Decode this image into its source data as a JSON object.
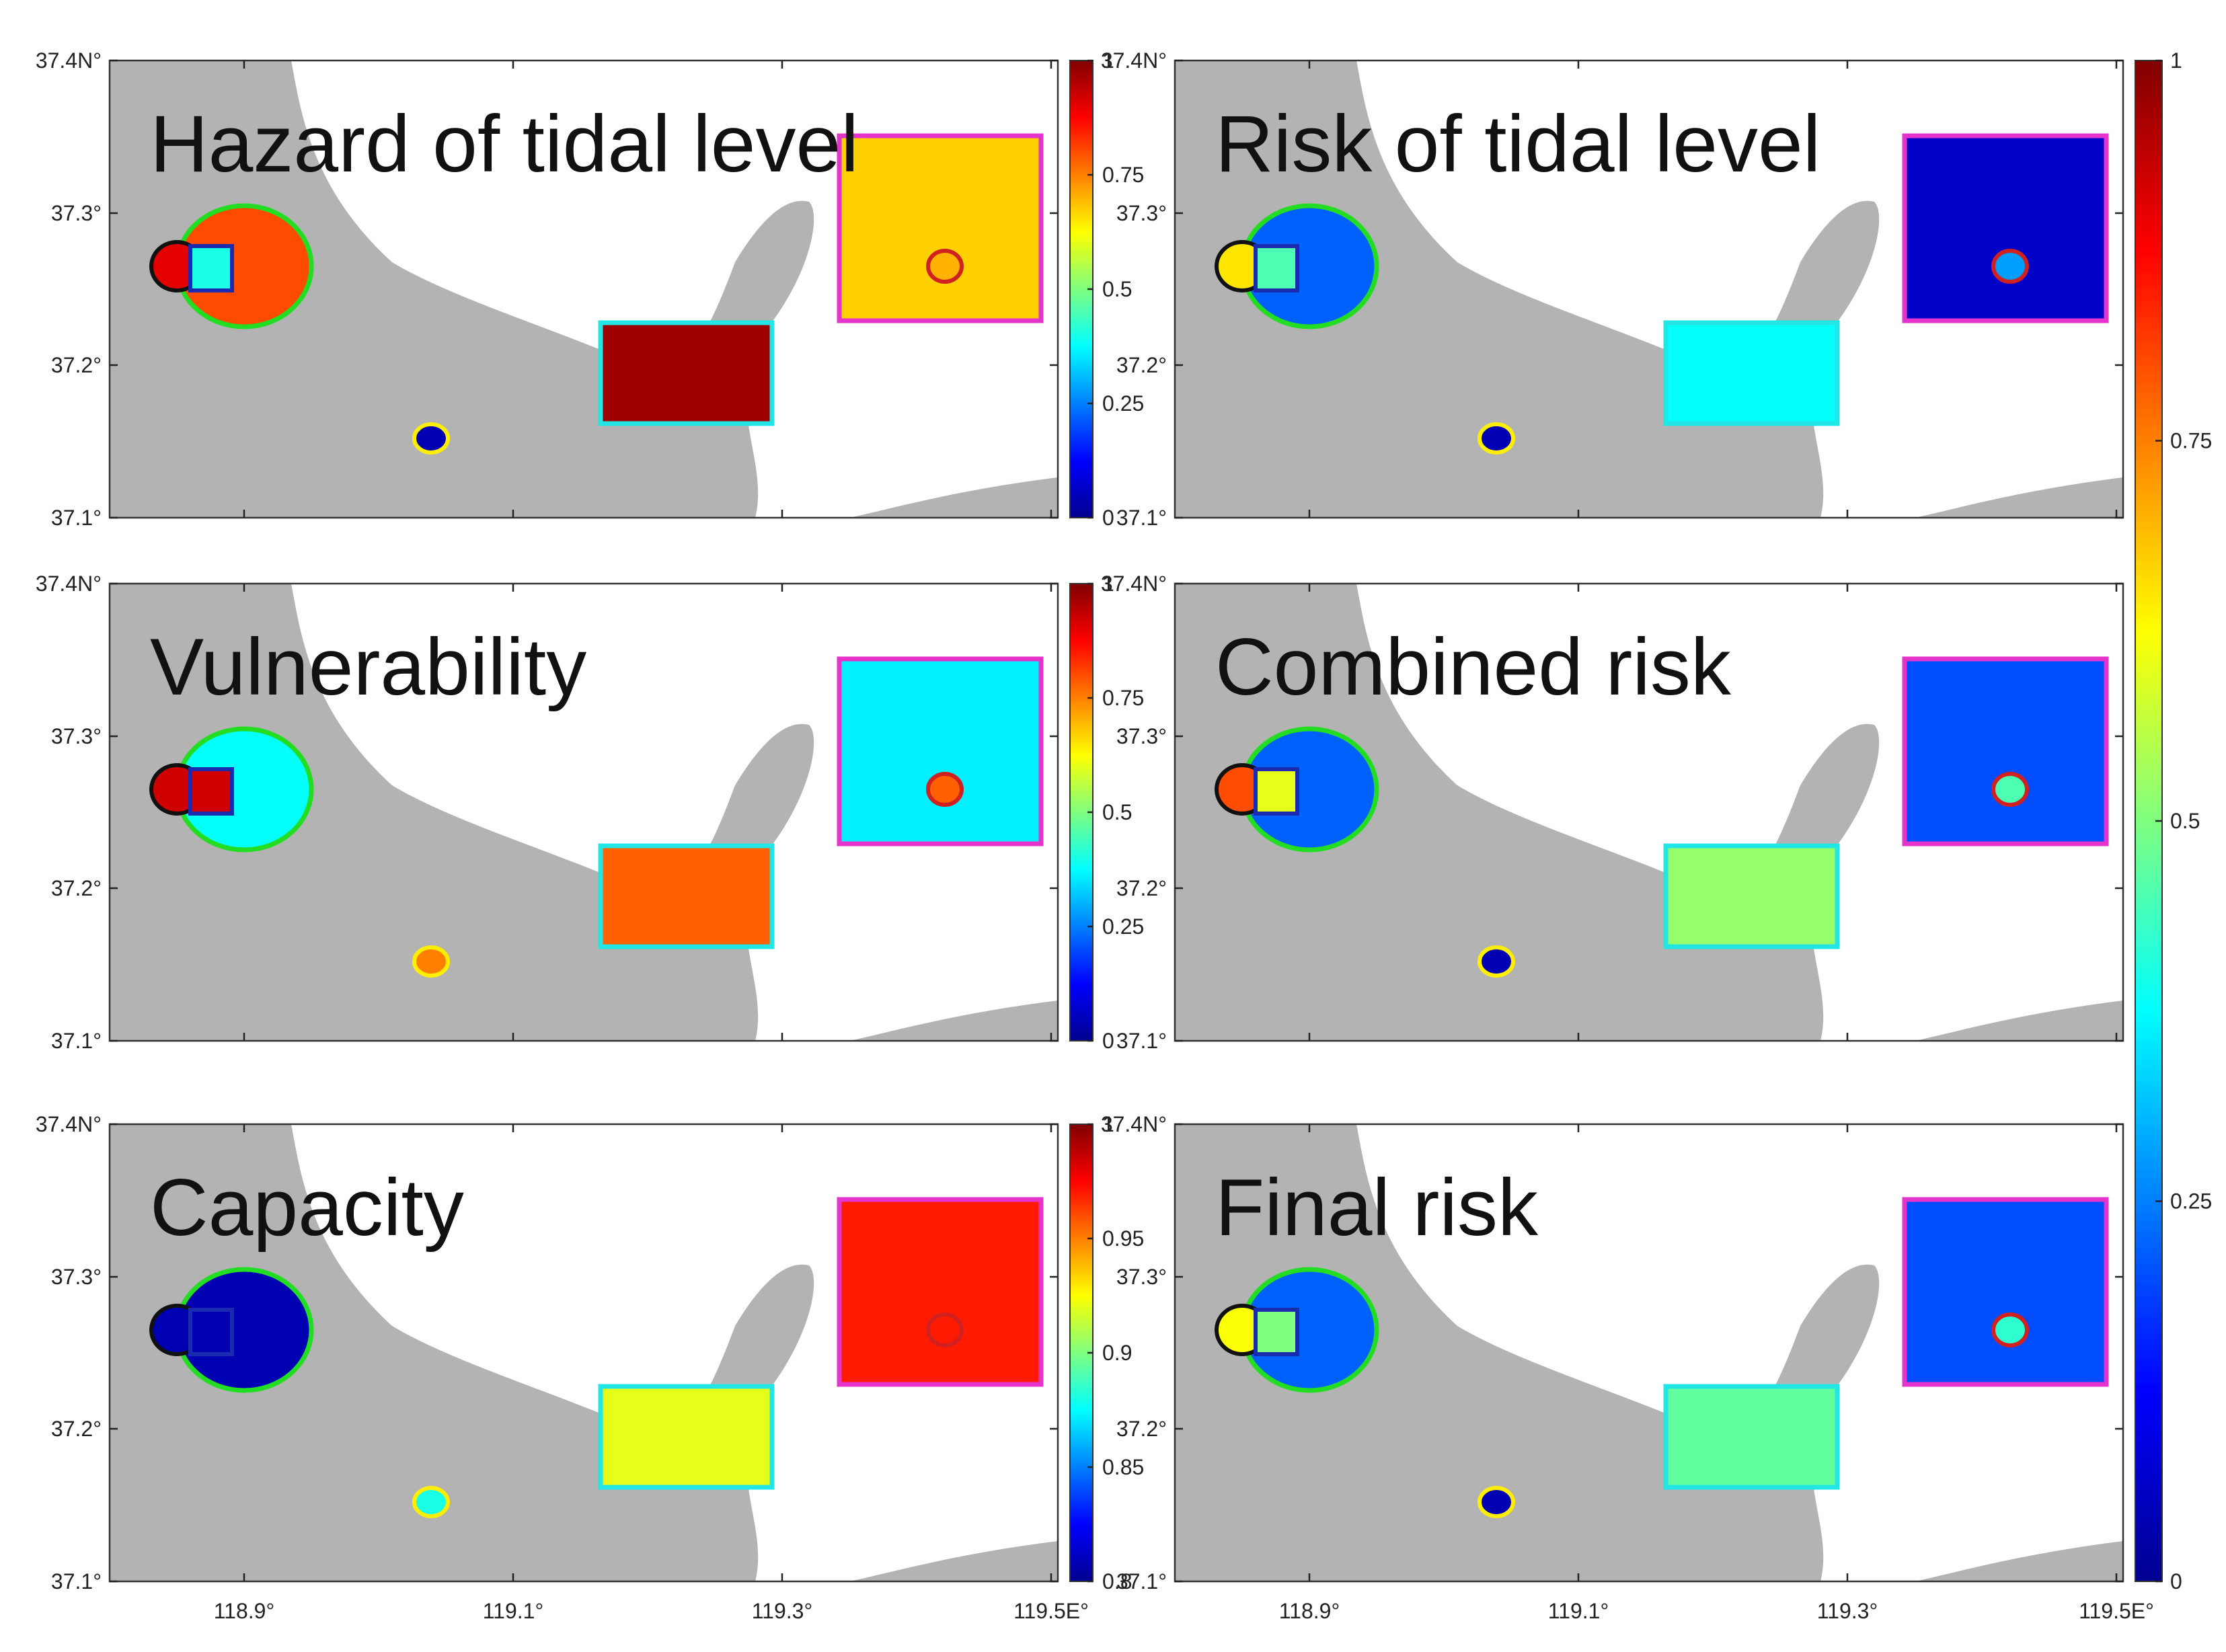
{
  "figure": {
    "x_ticks": [
      "118.9°",
      "119.1°",
      "119.3°",
      "119.5E°"
    ],
    "y_ticks": [
      "37.4N°",
      "37.3°",
      "37.2°",
      "37.1°"
    ]
  },
  "chart_data": [
    {
      "type": "heatmap",
      "title": "Hazard of tidal level",
      "colorbar_ticks": [
        "0",
        "0.25",
        "0.5",
        "0.75",
        "1"
      ],
      "colorbar_range": [
        0,
        1
      ],
      "region_values": {
        "left_ellipse": 0.8,
        "box_mid": 0.97,
        "box_upper": 0.67,
        "dot": 0.05,
        "small_circle": 0.7,
        "left_box": 0.4,
        "left_circle": 0.9
      },
      "marker_colors": {
        "ellipse_ring": "#22dd22",
        "box_mid_border": "#22e6e6",
        "box_upper_border": "#e633cc",
        "dot_ring": "#ffee00",
        "small_circle_ring": "#d12020"
      }
    },
    {
      "type": "heatmap",
      "title": "Risk of tidal level",
      "colorbar_ticks": [
        "0",
        "0.25",
        "0.5",
        "0.75",
        "1"
      ],
      "colorbar_range": [
        0,
        1
      ],
      "region_values": {
        "left_ellipse": 0.22,
        "box_mid": 0.38,
        "box_upper": 0.07,
        "dot": 0.05,
        "small_circle": 0.28,
        "left_box": 0.45,
        "left_circle": 0.65
      }
    },
    {
      "type": "heatmap",
      "title": "Vulnerability",
      "colorbar_ticks": [
        "0",
        "0.25",
        "0.5",
        "0.75",
        "1"
      ],
      "colorbar_range": [
        0,
        1
      ],
      "region_values": {
        "left_ellipse": 0.38,
        "box_mid": 0.78,
        "box_upper": 0.36,
        "dot": 0.75,
        "small_circle": 0.78,
        "left_box": 0.92,
        "left_circle": 0.92
      }
    },
    {
      "type": "heatmap",
      "title": "Combined risk",
      "colorbar_ticks": [
        "0",
        "0.25",
        "0.5",
        "0.75",
        "1"
      ],
      "colorbar_range": [
        0,
        1
      ],
      "region_values": {
        "left_ellipse": 0.22,
        "box_mid": 0.52,
        "box_upper": 0.2,
        "dot": 0.05,
        "small_circle": 0.45,
        "left_box": 0.6,
        "left_circle": 0.8
      }
    },
    {
      "type": "heatmap",
      "title": "Capacity",
      "colorbar_ticks": [
        "0.8",
        "0.85",
        "0.9",
        "0.95",
        "1"
      ],
      "colorbar_range": [
        0.8,
        1
      ],
      "region_values": {
        "left_ellipse": 0.81,
        "box_mid": 0.92,
        "box_upper": 0.97,
        "dot": 0.88,
        "small_circle": 0.97,
        "left_box": 0.81,
        "left_circle": 0.81
      }
    },
    {
      "type": "heatmap",
      "title": "Final risk",
      "colorbar_ticks": [
        "0",
        "0.25",
        "0.5",
        "0.75",
        "1"
      ],
      "colorbar_range": [
        0,
        1
      ],
      "region_values": {
        "left_ellipse": 0.22,
        "box_mid": 0.47,
        "box_upper": 0.2,
        "dot": 0.05,
        "small_circle": 0.42,
        "left_box": 0.5,
        "left_circle": 0.62
      }
    }
  ],
  "shared_colorbar": {
    "ticks": [
      "0",
      "0.25",
      "0.5",
      "0.75",
      "1"
    ],
    "range": [
      0,
      1
    ]
  }
}
